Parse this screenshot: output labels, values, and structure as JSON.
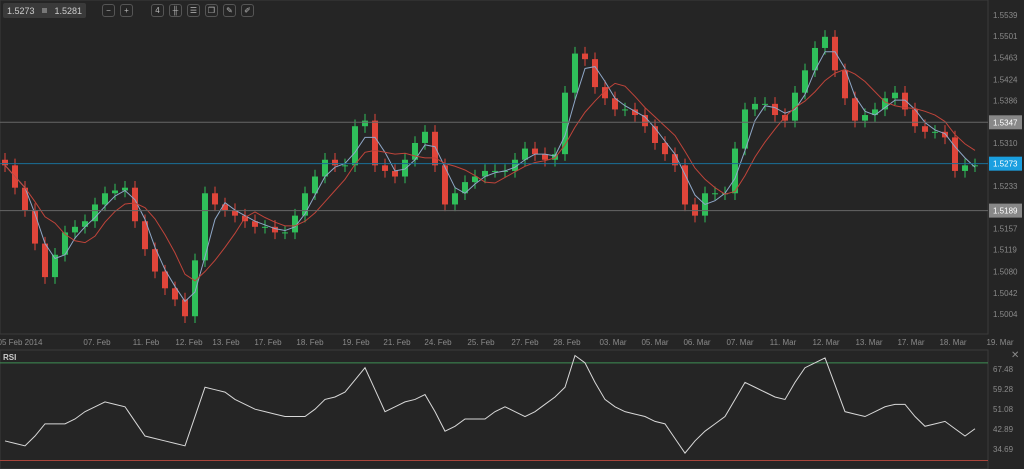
{
  "toolbar": {
    "bid": "1.5273",
    "ask": "1.5281",
    "buttons": [
      {
        "icon": "zoom-out-icon",
        "glyph": "−"
      },
      {
        "icon": "zoom-in-icon",
        "glyph": "+"
      },
      {
        "icon": "timeframe-icon",
        "glyph": "4"
      },
      {
        "icon": "chart-type-icon",
        "glyph": "╫"
      },
      {
        "icon": "indicators-icon",
        "glyph": "☰"
      },
      {
        "icon": "copy-icon",
        "glyph": "❐"
      },
      {
        "icon": "edit-icon",
        "glyph": "✎"
      },
      {
        "icon": "draw-icon",
        "glyph": "✐"
      }
    ]
  },
  "price_axis": {
    "ticks": [
      "1.5539",
      "1.5501",
      "1.5463",
      "1.5424",
      "1.5386",
      "1.5310",
      "1.5233",
      "1.5157",
      "1.5119",
      "1.5080",
      "1.5042",
      "1.5004"
    ],
    "current": "1.5273",
    "level_high": "1.5347",
    "level_low": "1.5189",
    "current_color": "#1a9fe0"
  },
  "time_axis": [
    "05 Feb 2014",
    "07. Feb",
    "11. Feb",
    "12. Feb",
    "13. Feb",
    "17. Feb",
    "18. Feb",
    "19. Feb",
    "21. Feb",
    "24. Feb",
    "25. Feb",
    "27. Feb",
    "28. Feb",
    "03. Mar",
    "05. Mar",
    "06. Mar",
    "07. Mar",
    "11. Mar",
    "12. Mar",
    "13. Mar",
    "17. Mar",
    "18. Mar",
    "19. Mar"
  ],
  "colors": {
    "up": "#2fbf5a",
    "down": "#e0453a",
    "ma_fast": "#8fa7c7",
    "ma_slow": "#c0443a"
  },
  "closes": [
    1.527,
    1.523,
    1.519,
    1.513,
    1.507,
    1.511,
    1.515,
    1.516,
    1.517,
    1.52,
    1.522,
    1.5225,
    1.523,
    1.517,
    1.512,
    1.508,
    1.505,
    1.503,
    1.5,
    1.51,
    1.522,
    1.52,
    1.519,
    1.518,
    1.517,
    1.516,
    1.516,
    1.515,
    1.515,
    1.518,
    1.522,
    1.525,
    1.528,
    1.527,
    1.527,
    1.534,
    1.535,
    1.527,
    1.526,
    1.525,
    1.528,
    1.531,
    1.533,
    1.527,
    1.52,
    1.522,
    1.524,
    1.525,
    1.526,
    1.526,
    1.526,
    1.528,
    1.53,
    1.529,
    1.528,
    1.529,
    1.54,
    1.547,
    1.546,
    1.541,
    1.539,
    1.537,
    1.537,
    1.536,
    1.534,
    1.531,
    1.529,
    1.527,
    1.52,
    1.518,
    1.522,
    1.522,
    1.522,
    1.53,
    1.537,
    1.538,
    1.538,
    1.536,
    1.535,
    1.54,
    1.544,
    1.548,
    1.55,
    1.544,
    1.539,
    1.535,
    1.536,
    1.537,
    1.539,
    1.54,
    1.537,
    1.534,
    1.533,
    1.533,
    1.532,
    1.526,
    1.527,
    1.527
  ],
  "rsi": {
    "label": "RSI",
    "ticks": [
      "67.48",
      "59.28",
      "51.08",
      "42.89",
      "34.69"
    ],
    "values": [
      38,
      37,
      36,
      40,
      45,
      45,
      45,
      47,
      50,
      52,
      54,
      53,
      52,
      46,
      40,
      39,
      38,
      37,
      36,
      48,
      60,
      59,
      58,
      55,
      53,
      51,
      50,
      49,
      48,
      48,
      48,
      51,
      55,
      56,
      58,
      63,
      68,
      59,
      50,
      52,
      54,
      55,
      57,
      50,
      42,
      44,
      47,
      47,
      47,
      50,
      52,
      50,
      48,
      50,
      53,
      56,
      60,
      73,
      70,
      62,
      55,
      52,
      50,
      49,
      48,
      46,
      45,
      39,
      33,
      38,
      42,
      45,
      48,
      55,
      62,
      60,
      58,
      56,
      55,
      62,
      68,
      70,
      72,
      61,
      50,
      49,
      48,
      50,
      52,
      53,
      53,
      48,
      44,
      45,
      46,
      43,
      40,
      43
    ],
    "upper": 70,
    "lower": 30
  }
}
